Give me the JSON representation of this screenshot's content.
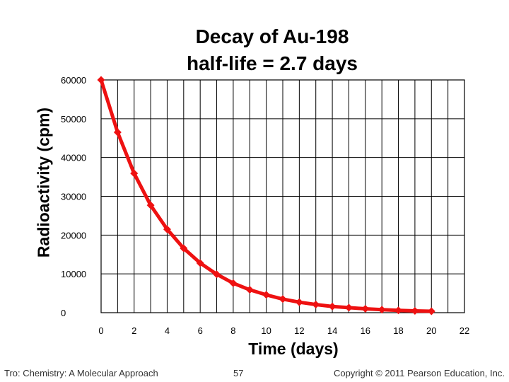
{
  "chart_data": {
    "type": "line",
    "title": "Decay of Au-198",
    "subtitle": "half-life = 2.7 days",
    "xlabel": "Time (days)",
    "ylabel": "Radioactivity (cpm)",
    "xlim": [
      0,
      22
    ],
    "ylim": [
      0,
      60000
    ],
    "x_ticks": [
      "0",
      "2",
      "4",
      "6",
      "8",
      "10",
      "12",
      "14",
      "16",
      "18",
      "20",
      "22"
    ],
    "y_ticks": [
      "0",
      "10000",
      "20000",
      "30000",
      "40000",
      "50000",
      "60000"
    ],
    "grid": true,
    "series": [
      {
        "color": "#ee1111",
        "marker": "diamond",
        "x": [
          0,
          1,
          2,
          3,
          4,
          5,
          6,
          7,
          8,
          9,
          10,
          11,
          12,
          13,
          14,
          15,
          16,
          17,
          18,
          19,
          20
        ],
        "y": [
          60000,
          46500,
          35900,
          27700,
          21500,
          16600,
          12800,
          9900,
          7600,
          5900,
          4600,
          3500,
          2700,
          2100,
          1600,
          1300,
          1000,
          770,
          600,
          460,
          360
        ]
      }
    ]
  },
  "footer": {
    "left": "Tro: Chemistry: A Molecular Approach",
    "page": "57",
    "right": "Copyright © 2011 Pearson Education, Inc."
  }
}
